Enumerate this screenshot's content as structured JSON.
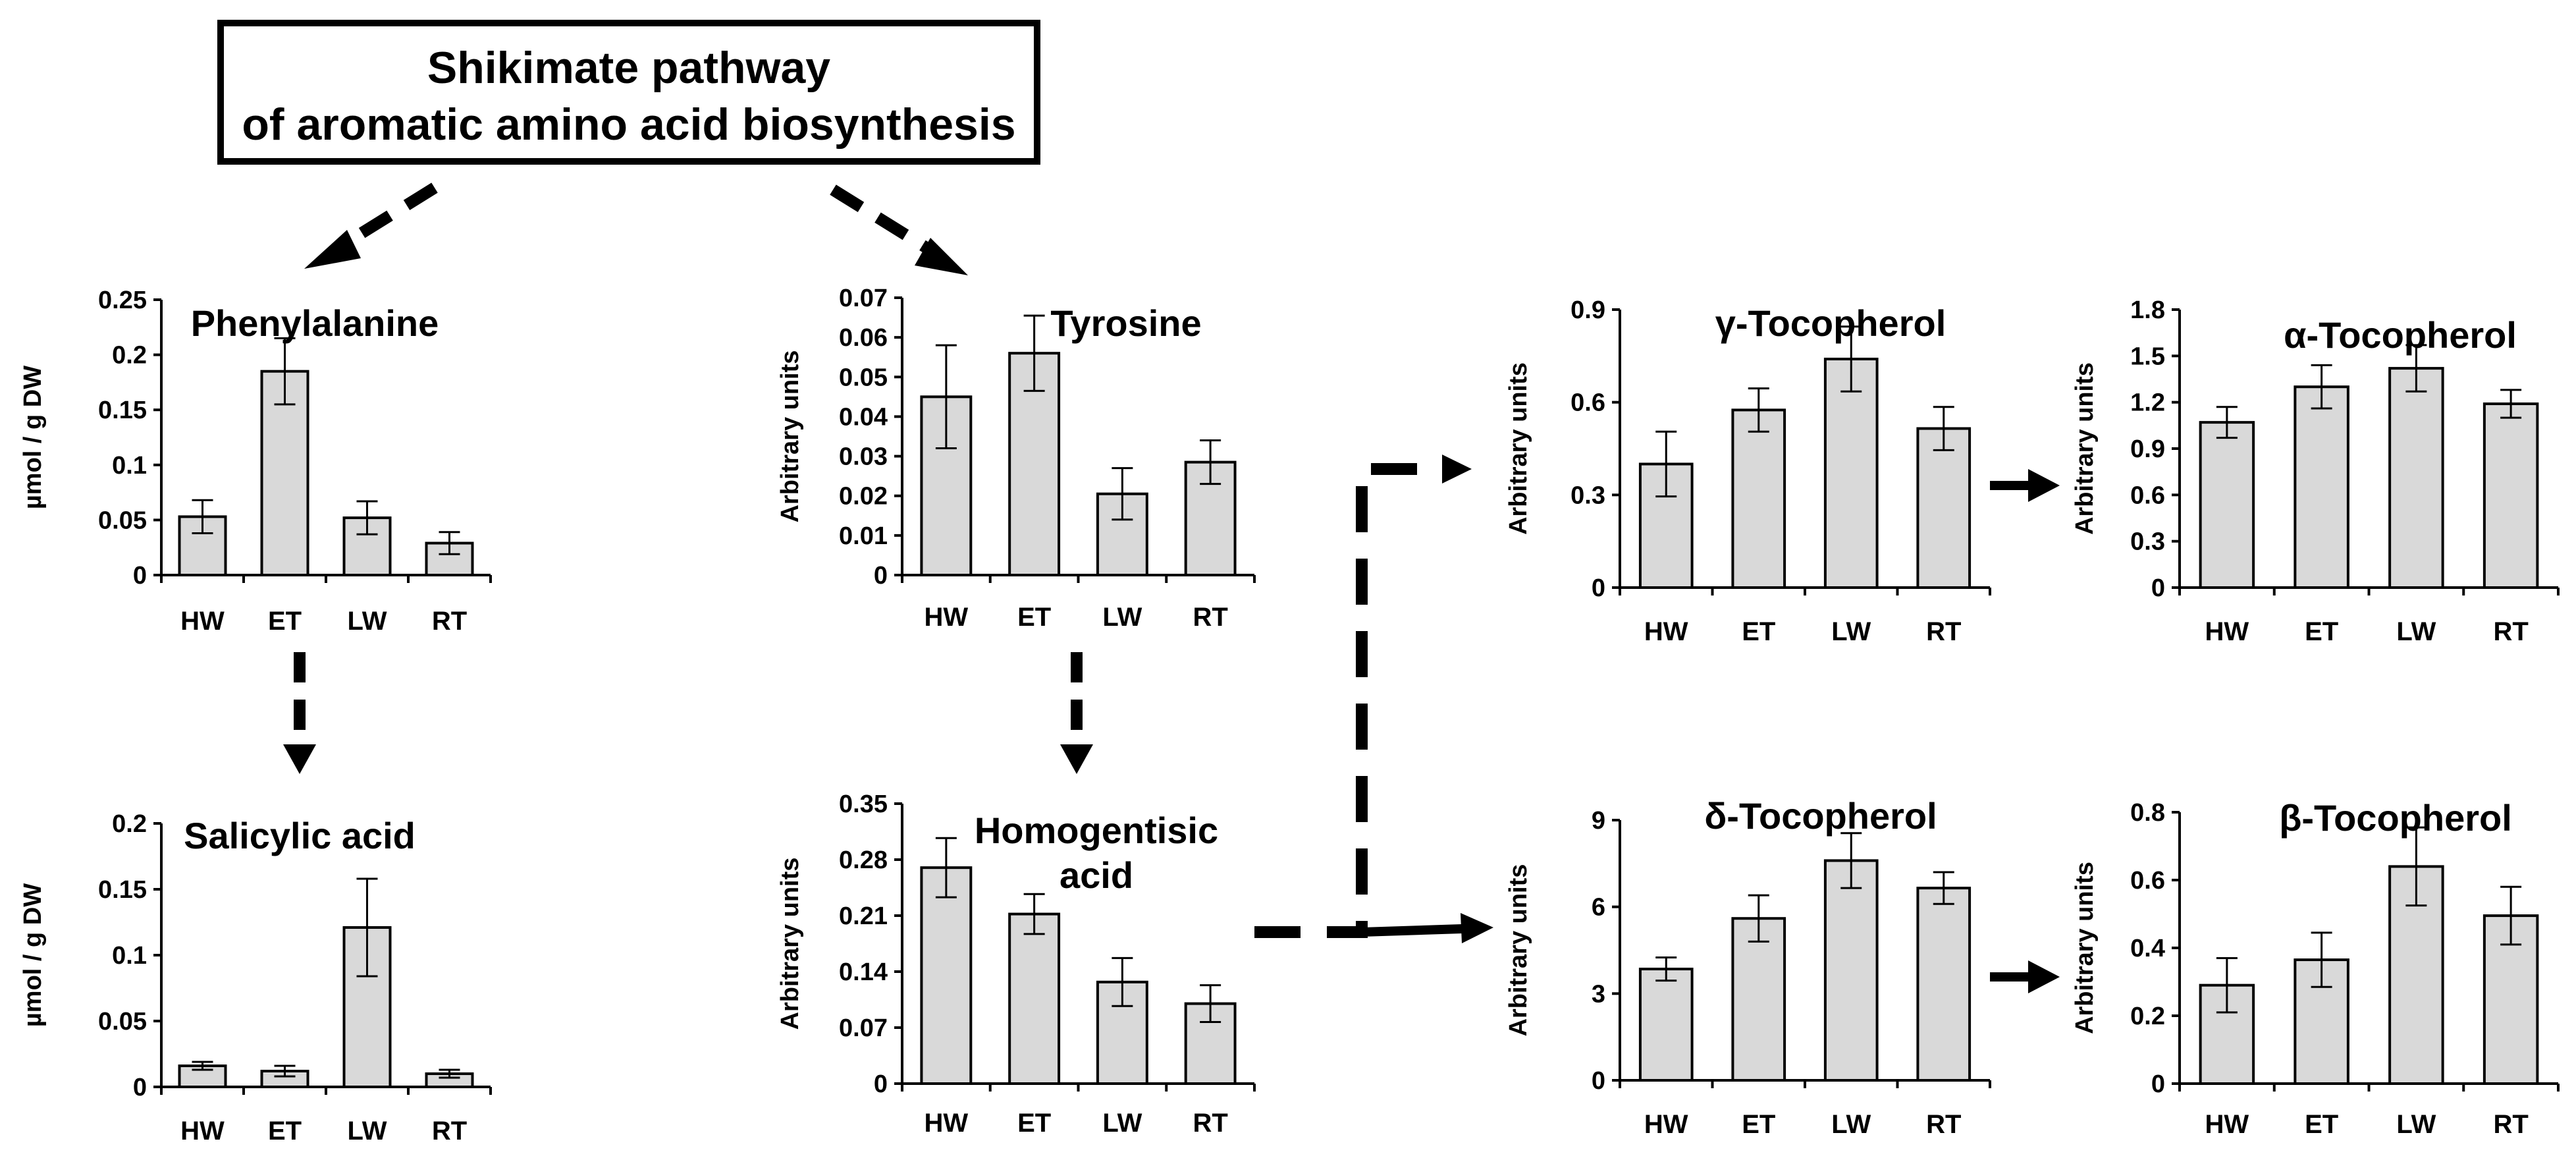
{
  "header": {
    "line1": "Shikimate pathway",
    "line2": "of aromatic amino acid biosynthesis"
  },
  "chart_data": [
    {
      "type": "bar",
      "title": "Phenylalanine",
      "ylabel": "µmol / g DW",
      "categories": [
        "HW",
        "ET",
        "LW",
        "RT"
      ],
      "values": [
        0.053,
        0.185,
        0.052,
        0.029
      ],
      "errors": [
        0.015,
        0.03,
        0.015,
        0.01
      ],
      "ylim": [
        0,
        0.25
      ],
      "yticks": [
        "0",
        "0.05",
        "0.1",
        "0.15",
        "0.2",
        "0.25"
      ]
    },
    {
      "type": "bar",
      "title": "Salicylic acid",
      "ylabel": "µmol / g DW",
      "categories": [
        "HW",
        "ET",
        "LW",
        "RT"
      ],
      "values": [
        0.016,
        0.012,
        0.121,
        0.01
      ],
      "errors": [
        0.003,
        0.004,
        0.037,
        0.003
      ],
      "ylim": [
        0,
        0.2
      ],
      "yticks": [
        "0",
        "0.05",
        "0.1",
        "0.15",
        "0.2"
      ]
    },
    {
      "type": "bar",
      "title": "Tyrosine",
      "ylabel": "Arbitrary units",
      "categories": [
        "HW",
        "ET",
        "LW",
        "RT"
      ],
      "values": [
        0.045,
        0.056,
        0.0205,
        0.0285
      ],
      "errors": [
        0.013,
        0.0095,
        0.0065,
        0.0055
      ],
      "ylim": [
        0,
        0.07
      ],
      "yticks": [
        "0",
        "0.01",
        "0.02",
        "0.03",
        "0.04",
        "0.05",
        "0.06",
        "0.07"
      ]
    },
    {
      "type": "bar",
      "title": [
        "Homogentisic",
        "acid"
      ],
      "ylabel": "Arbitrary units",
      "categories": [
        "HW",
        "ET",
        "LW",
        "RT"
      ],
      "values": [
        0.27,
        0.212,
        0.127,
        0.1
      ],
      "errors": [
        0.037,
        0.025,
        0.03,
        0.023
      ],
      "ylim": [
        0,
        0.35
      ],
      "yticks": [
        "0",
        "0.07",
        "0.14",
        "0.21",
        "0.28",
        "0.35"
      ]
    },
    {
      "type": "bar",
      "title": "γ-Tocopherol",
      "ylabel": "Arbitrary units",
      "categories": [
        "HW",
        "ET",
        "LW",
        "RT"
      ],
      "values": [
        0.4,
        0.575,
        0.74,
        0.515
      ],
      "errors": [
        0.105,
        0.07,
        0.105,
        0.07
      ],
      "ylim": [
        0,
        0.9
      ],
      "yticks": [
        "0",
        "0.3",
        "0.6",
        "0.9"
      ]
    },
    {
      "type": "bar",
      "title": "α-Tocopherol",
      "ylabel": "Arbitrary units",
      "categories": [
        "HW",
        "ET",
        "LW",
        "RT"
      ],
      "values": [
        1.07,
        1.3,
        1.42,
        1.19
      ],
      "errors": [
        0.1,
        0.14,
        0.15,
        0.09
      ],
      "ylim": [
        0,
        1.8
      ],
      "yticks": [
        "0",
        "0.3",
        "0.6",
        "0.9",
        "1.2",
        "1.5",
        "1.8"
      ]
    },
    {
      "type": "bar",
      "title": "δ-Tocopherol",
      "ylabel": "Arbitrary units",
      "categories": [
        "HW",
        "ET",
        "LW",
        "RT"
      ],
      "values": [
        3.85,
        5.6,
        7.6,
        6.65
      ],
      "errors": [
        0.4,
        0.8,
        0.95,
        0.55
      ],
      "ylim": [
        0,
        9
      ],
      "yticks": [
        "0",
        "3",
        "6",
        "9"
      ]
    },
    {
      "type": "bar",
      "title": "β-Tocopherol",
      "ylabel": "Arbitrary units",
      "categories": [
        "HW",
        "ET",
        "LW",
        "RT"
      ],
      "values": [
        0.29,
        0.365,
        0.64,
        0.495
      ],
      "errors": [
        0.08,
        0.08,
        0.115,
        0.085
      ],
      "ylim": [
        0,
        0.8
      ],
      "yticks": [
        "0",
        "0.2",
        "0.4",
        "0.6",
        "0.8"
      ]
    }
  ]
}
